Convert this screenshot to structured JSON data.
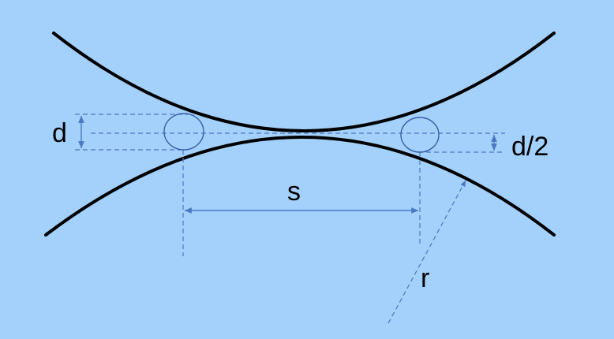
{
  "labels": {
    "d": "d",
    "d_half": "d/2",
    "s": "s",
    "r": "r"
  },
  "colors": {
    "background": "#a3d1fb",
    "curve": "#000000",
    "guide": "#4a78c2",
    "ball_outline": "#3a5fa8"
  }
}
